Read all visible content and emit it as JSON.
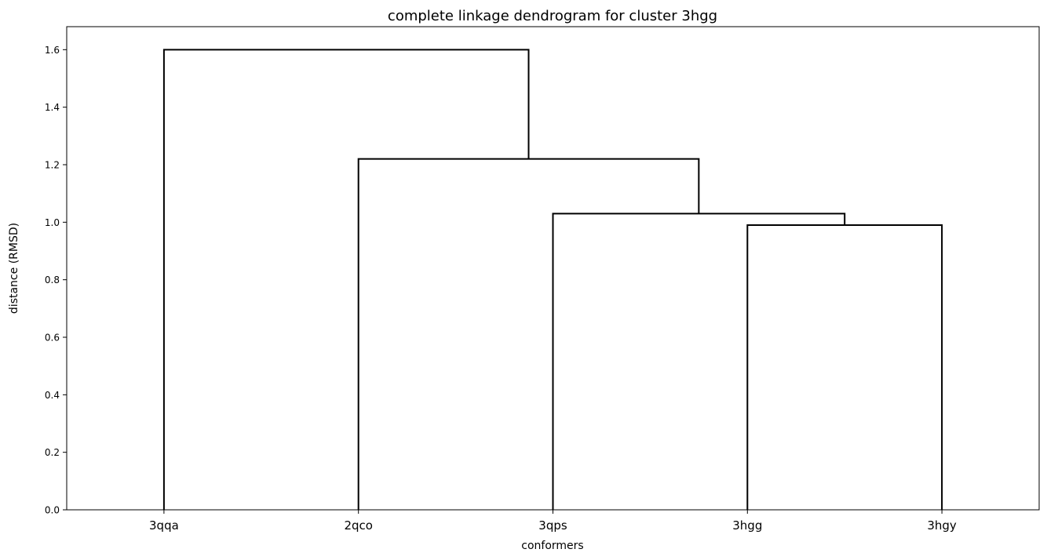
{
  "chart_data": {
    "type": "dendrogram",
    "title": "complete linkage dendrogram for cluster 3hgg",
    "xlabel": "conformers",
    "ylabel": "distance (RMSD)",
    "leaves": [
      "3qqa",
      "2qco",
      "3qps",
      "3hgg",
      "3hgy"
    ],
    "y_ticks": [
      "0.0",
      "0.2",
      "0.4",
      "0.6",
      "0.8",
      "1.0",
      "1.2",
      "1.4",
      "1.6"
    ],
    "ylim": [
      0,
      1.68
    ],
    "grid": false,
    "line_color": "#000000",
    "merges": [
      {
        "left": "3hgg",
        "right": "3hgy",
        "height": 0.99
      },
      {
        "left": "3qps",
        "right": "3hgg+3hgy",
        "height": 1.03
      },
      {
        "left": "2qco",
        "right": "3qps+3hgg+3hgy",
        "height": 1.22
      },
      {
        "left": "3qqa",
        "right": "2qco+3qps+3hgg+3hgy",
        "height": 1.6
      }
    ]
  }
}
